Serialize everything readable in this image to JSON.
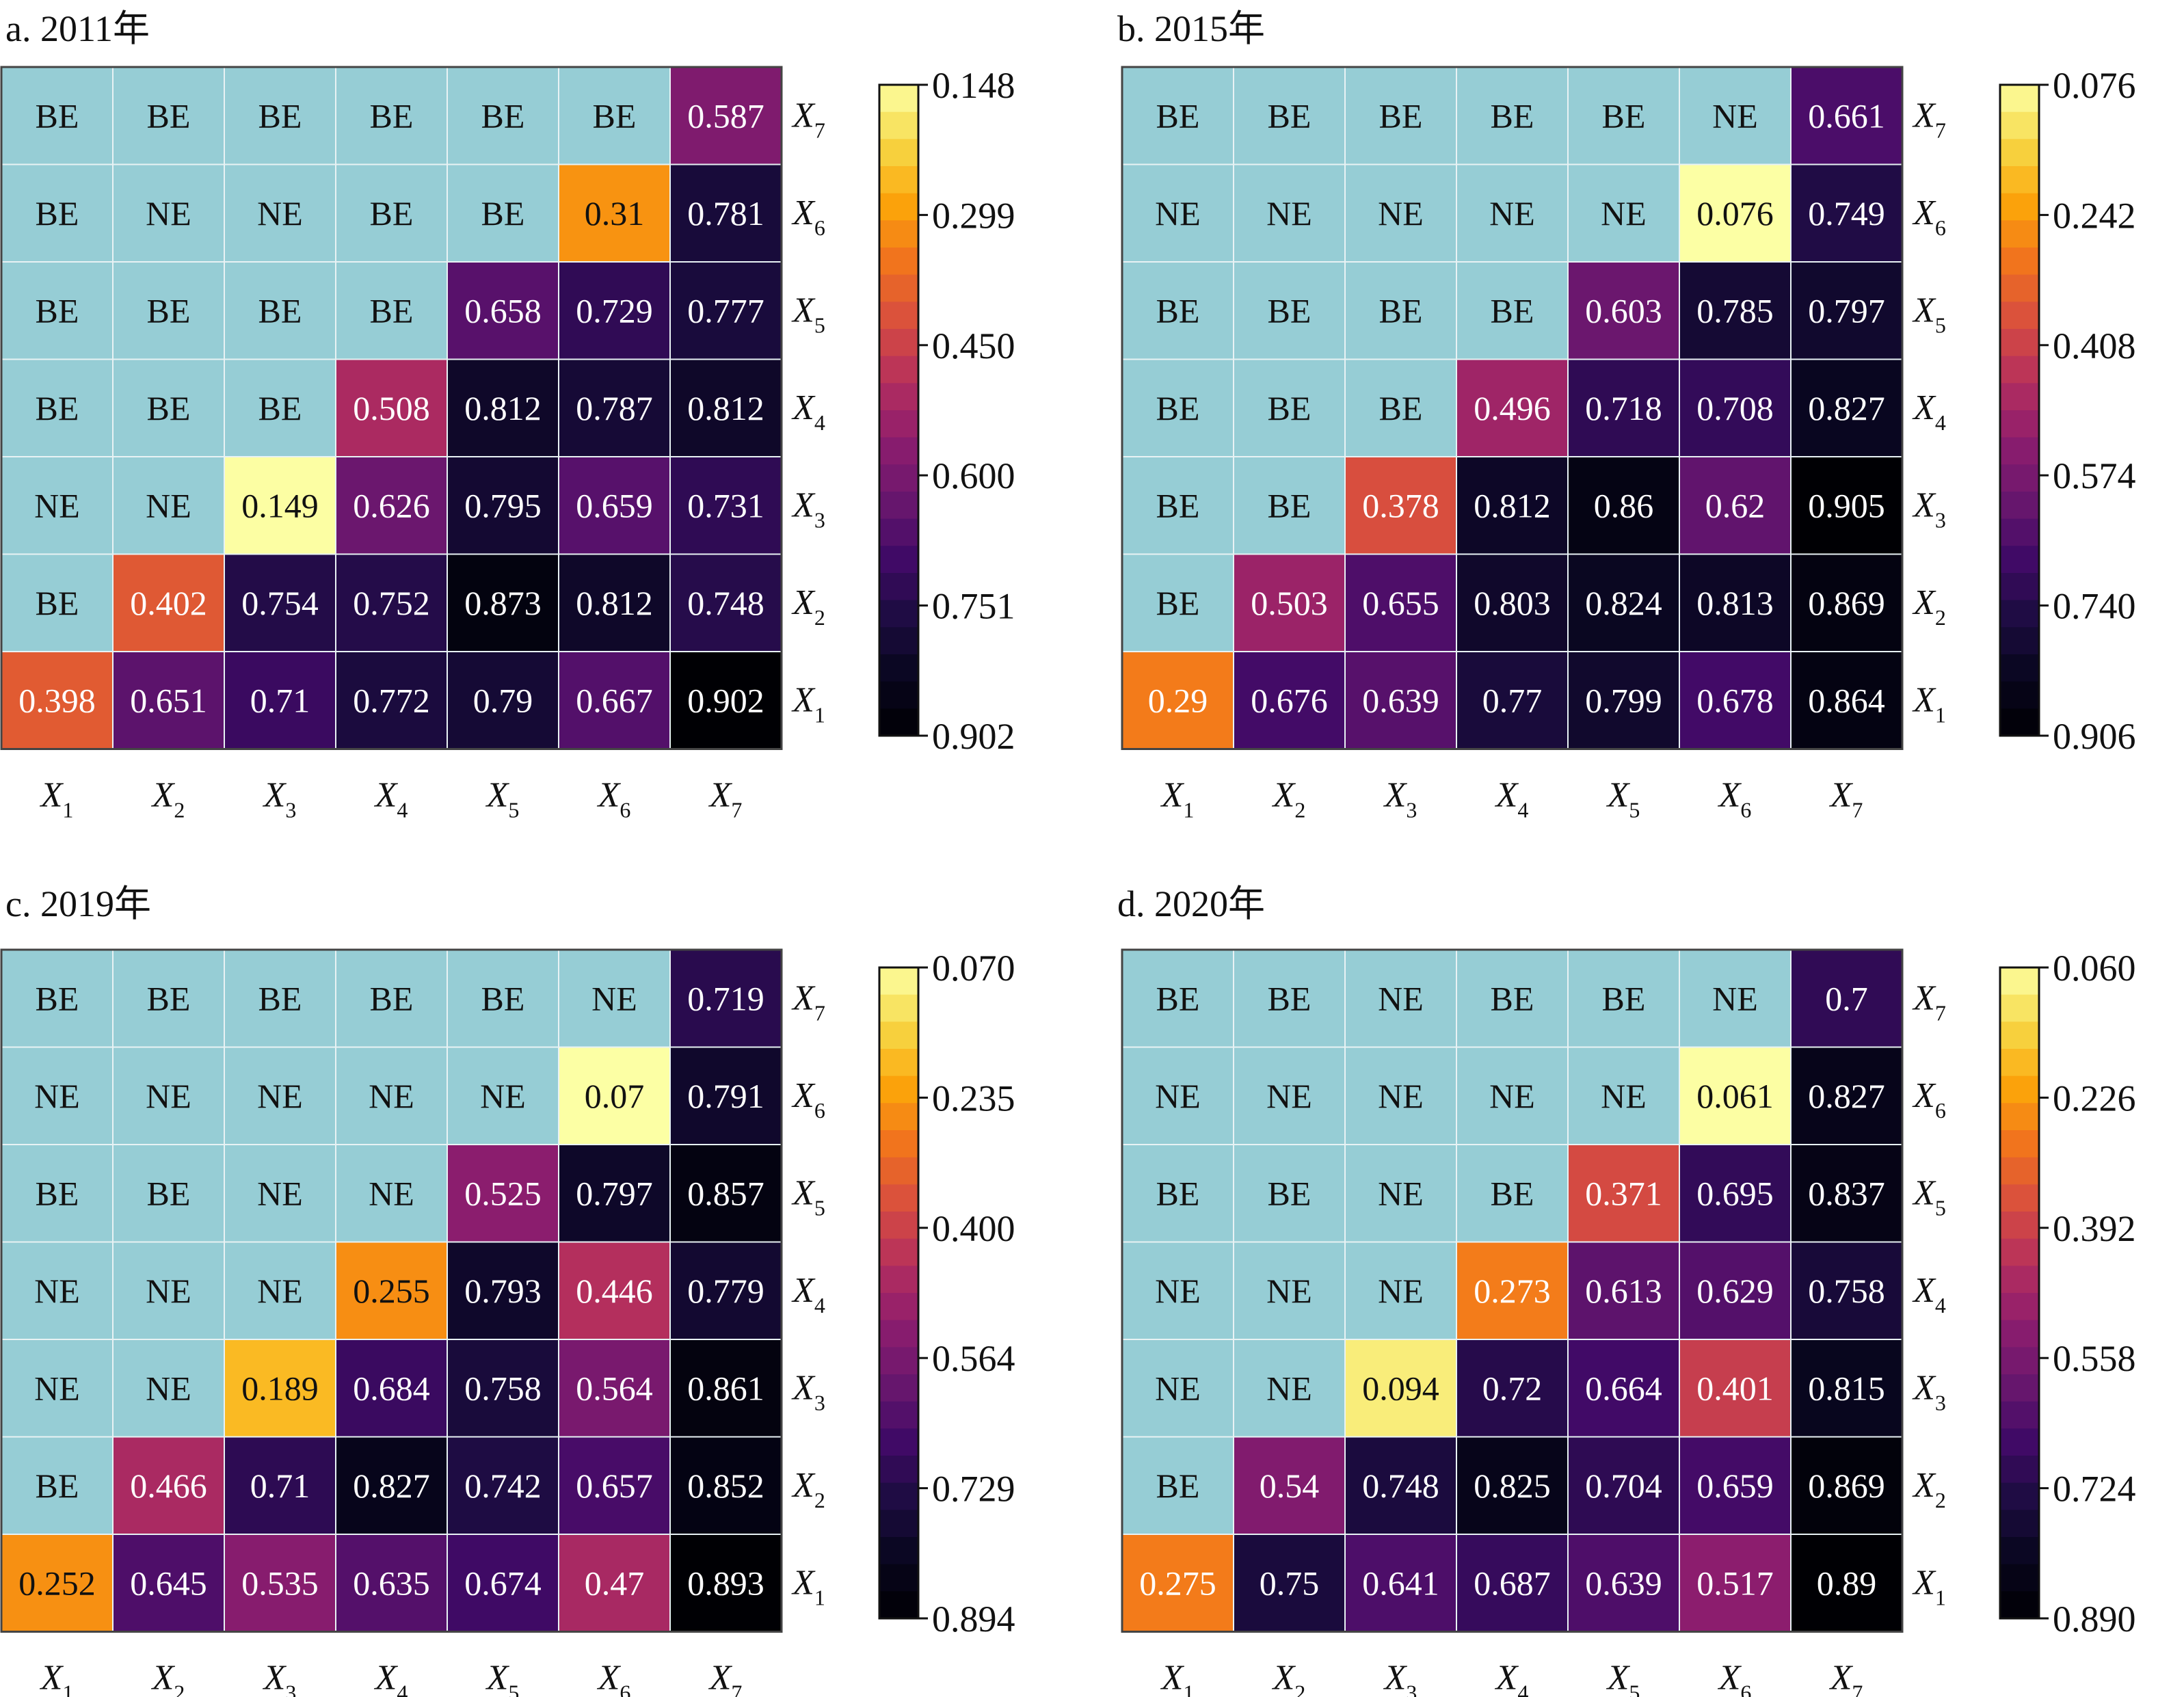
{
  "colors": {
    "be_ne_cell": "#96cdd5",
    "grid_line": "#e8f2f4",
    "frame": "#444444",
    "colormap": [
      "#fcffa4",
      "#f6d746",
      "#fca50a",
      "#f1731d",
      "#d84e3e",
      "#b52f5d",
      "#8e1d6e",
      "#6a176e",
      "#410a67",
      "#1d0c42",
      "#08061e",
      "#000004"
    ]
  },
  "chart_data": [
    {
      "type": "heatmap",
      "title": "a. 2011年",
      "x_tick_labels": [
        [
          "X",
          "1"
        ],
        [
          "X",
          "2"
        ],
        [
          "X",
          "3"
        ],
        [
          "X",
          "4"
        ],
        [
          "X",
          "5"
        ],
        [
          "X",
          "6"
        ],
        [
          "X",
          "7"
        ]
      ],
      "y_tick_labels_top_to_bottom": [
        [
          "X",
          "7"
        ],
        [
          "X",
          "6"
        ],
        [
          "X",
          "5"
        ],
        [
          "X",
          "4"
        ],
        [
          "X",
          "3"
        ],
        [
          "X",
          "2"
        ],
        [
          "X",
          "1"
        ]
      ],
      "colorbar_ticks": [
        "0.148",
        "0.299",
        "0.450",
        "0.600",
        "0.751",
        "0.902"
      ],
      "color_range": [
        0.148,
        0.902
      ],
      "rows_top_to_bottom": [
        [
          "BE",
          "BE",
          "BE",
          "BE",
          "BE",
          "BE",
          "0.587"
        ],
        [
          "BE",
          "NE",
          "NE",
          "BE",
          "BE",
          "0.31",
          "0.781"
        ],
        [
          "BE",
          "BE",
          "BE",
          "BE",
          "0.658",
          "0.729",
          "0.777"
        ],
        [
          "BE",
          "BE",
          "BE",
          "0.508",
          "0.812",
          "0.787",
          "0.812"
        ],
        [
          "NE",
          "NE",
          "0.149",
          "0.626",
          "0.795",
          "0.659",
          "0.731"
        ],
        [
          "BE",
          "0.402",
          "0.754",
          "0.752",
          "0.873",
          "0.812",
          "0.748"
        ],
        [
          "0.398",
          "0.651",
          "0.71",
          "0.772",
          "0.79",
          "0.667",
          "0.902"
        ]
      ]
    },
    {
      "type": "heatmap",
      "title": "b. 2015年",
      "x_tick_labels": [
        [
          "X",
          "1"
        ],
        [
          "X",
          "2"
        ],
        [
          "X",
          "3"
        ],
        [
          "X",
          "4"
        ],
        [
          "X",
          "5"
        ],
        [
          "X",
          "6"
        ],
        [
          "X",
          "7"
        ]
      ],
      "y_tick_labels_top_to_bottom": [
        [
          "X",
          "7"
        ],
        [
          "X",
          "6"
        ],
        [
          "X",
          "5"
        ],
        [
          "X",
          "4"
        ],
        [
          "X",
          "3"
        ],
        [
          "X",
          "2"
        ],
        [
          "X",
          "1"
        ]
      ],
      "colorbar_ticks": [
        "0.076",
        "0.242",
        "0.408",
        "0.574",
        "0.740",
        "0.906"
      ],
      "color_range": [
        0.076,
        0.906
      ],
      "rows_top_to_bottom": [
        [
          "BE",
          "BE",
          "BE",
          "BE",
          "BE",
          "NE",
          "0.661"
        ],
        [
          "NE",
          "NE",
          "NE",
          "NE",
          "NE",
          "0.076",
          "0.749"
        ],
        [
          "BE",
          "BE",
          "BE",
          "BE",
          "0.603",
          "0.785",
          "0.797"
        ],
        [
          "BE",
          "BE",
          "BE",
          "0.496",
          "0.718",
          "0.708",
          "0.827"
        ],
        [
          "BE",
          "BE",
          "0.378",
          "0.812",
          "0.86",
          "0.62",
          "0.905"
        ],
        [
          "BE",
          "0.503",
          "0.655",
          "0.803",
          "0.824",
          "0.813",
          "0.869"
        ],
        [
          "0.29",
          "0.676",
          "0.639",
          "0.77",
          "0.799",
          "0.678",
          "0.864"
        ]
      ]
    },
    {
      "type": "heatmap",
      "title": "c. 2019年",
      "x_tick_labels": [
        [
          "X",
          "1"
        ],
        [
          "X",
          "2"
        ],
        [
          "X",
          "3"
        ],
        [
          "X",
          "4"
        ],
        [
          "X",
          "5"
        ],
        [
          "X",
          "6"
        ],
        [
          "X",
          "7"
        ]
      ],
      "y_tick_labels_top_to_bottom": [
        [
          "X",
          "7"
        ],
        [
          "X",
          "6"
        ],
        [
          "X",
          "5"
        ],
        [
          "X",
          "4"
        ],
        [
          "X",
          "3"
        ],
        [
          "X",
          "2"
        ],
        [
          "X",
          "1"
        ]
      ],
      "colorbar_ticks": [
        "0.070",
        "0.235",
        "0.400",
        "0.564",
        "0.729",
        "0.894"
      ],
      "color_range": [
        0.07,
        0.894
      ],
      "rows_top_to_bottom": [
        [
          "BE",
          "BE",
          "BE",
          "BE",
          "BE",
          "NE",
          "0.719"
        ],
        [
          "NE",
          "NE",
          "NE",
          "NE",
          "NE",
          "0.07",
          "0.791"
        ],
        [
          "BE",
          "BE",
          "NE",
          "NE",
          "0.525",
          "0.797",
          "0.857"
        ],
        [
          "NE",
          "NE",
          "NE",
          "0.255",
          "0.793",
          "0.446",
          "0.779"
        ],
        [
          "NE",
          "NE",
          "0.189",
          "0.684",
          "0.758",
          "0.564",
          "0.861"
        ],
        [
          "BE",
          "0.466",
          "0.71",
          "0.827",
          "0.742",
          "0.657",
          "0.852"
        ],
        [
          "0.252",
          "0.645",
          "0.535",
          "0.635",
          "0.674",
          "0.47",
          "0.893"
        ]
      ]
    },
    {
      "type": "heatmap",
      "title": "d. 2020年",
      "x_tick_labels": [
        [
          "X",
          "1"
        ],
        [
          "X",
          "2"
        ],
        [
          "X",
          "3"
        ],
        [
          "X",
          "4"
        ],
        [
          "X",
          "5"
        ],
        [
          "X",
          "6"
        ],
        [
          "X",
          "7"
        ]
      ],
      "y_tick_labels_top_to_bottom": [
        [
          "X",
          "7"
        ],
        [
          "X",
          "6"
        ],
        [
          "X",
          "5"
        ],
        [
          "X",
          "4"
        ],
        [
          "X",
          "3"
        ],
        [
          "X",
          "2"
        ],
        [
          "X",
          "1"
        ]
      ],
      "colorbar_ticks": [
        "0.060",
        "0.226",
        "0.392",
        "0.558",
        "0.724",
        "0.890"
      ],
      "color_range": [
        0.06,
        0.89
      ],
      "rows_top_to_bottom": [
        [
          "BE",
          "BE",
          "NE",
          "BE",
          "BE",
          "NE",
          "0.7"
        ],
        [
          "NE",
          "NE",
          "NE",
          "NE",
          "NE",
          "0.061",
          "0.827"
        ],
        [
          "BE",
          "BE",
          "NE",
          "BE",
          "0.371",
          "0.695",
          "0.837"
        ],
        [
          "NE",
          "NE",
          "NE",
          "0.273",
          "0.613",
          "0.629",
          "0.758"
        ],
        [
          "NE",
          "NE",
          "0.094",
          "0.72",
          "0.664",
          "0.401",
          "0.815"
        ],
        [
          "BE",
          "0.54",
          "0.748",
          "0.825",
          "0.704",
          "0.659",
          "0.869"
        ],
        [
          "0.275",
          "0.75",
          "0.641",
          "0.687",
          "0.639",
          "0.517",
          "0.89"
        ]
      ]
    }
  ]
}
